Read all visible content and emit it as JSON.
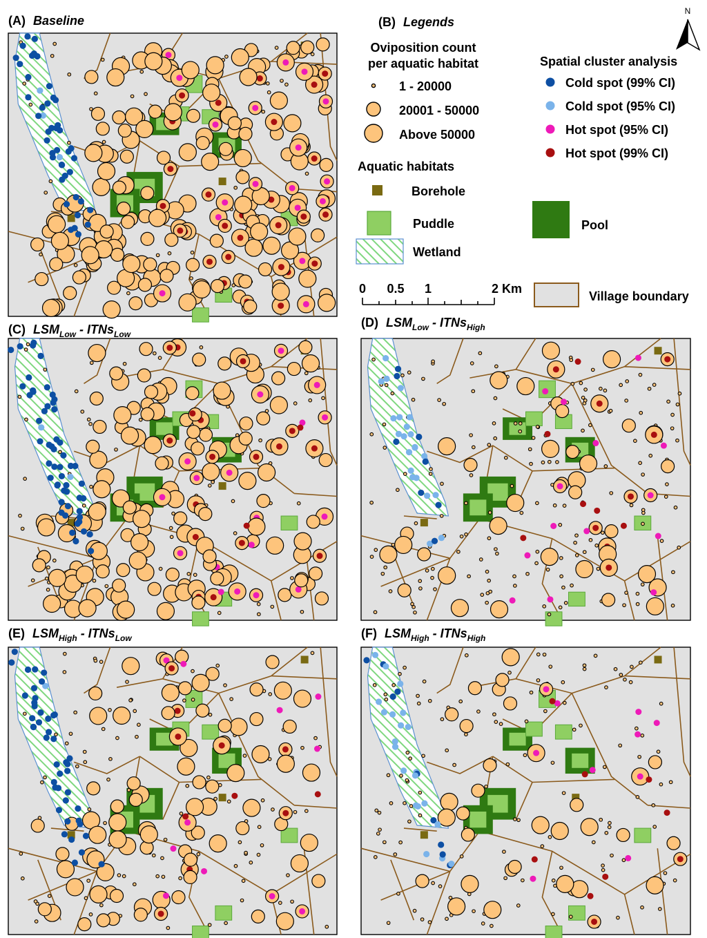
{
  "north_arrow": {
    "label": "N"
  },
  "scalebar": {
    "ticks": [
      "0",
      "0.5",
      "1",
      "2 Km"
    ]
  },
  "legend": {
    "panel_letter": "(B)",
    "title": "Legends",
    "oviposition_title_line1": "Oviposition count",
    "oviposition_title_line2": "per aquatic habitat",
    "size_classes": [
      "1 - 20000",
      "20001 - 50000",
      "Above 50000"
    ],
    "cluster_title": "Spatial cluster analysis",
    "clusters": [
      {
        "label": "Cold spot (99% CI)",
        "color": "#0d4fa3"
      },
      {
        "label": "Cold spot (95% CI)",
        "color": "#7ab3ea"
      },
      {
        "label": "Hot spot (95% CI)",
        "color": "#ee1ab8"
      },
      {
        "label": "Hot spot (99% CI)",
        "color": "#a80f10"
      }
    ],
    "habitats_title": "Aquatic habitats",
    "habitats": {
      "borehole": "Borehole",
      "puddle": "Puddle",
      "pool": "Pool",
      "wetland": "Wetland"
    },
    "village_boundary": "Village boundary"
  },
  "colors": {
    "map_background": "#e1e1e1",
    "habitat_circle": "#fdc47c",
    "village_boundary": "#8a5a1c",
    "wetland_hatch": "#7fd77f",
    "puddle": "#8fcf62",
    "pool": "#2f7a12",
    "borehole": "#7a6a12"
  },
  "panels": [
    {
      "letter": "(A)",
      "title_main": "Baseline",
      "title_a": "",
      "sub_a": "",
      "title_b": "",
      "sub_b": ""
    },
    {
      "letter": "(C)",
      "title_main": "",
      "title_a": "LSM",
      "sub_a": "Low",
      "title_b": " - ITNs",
      "sub_b": "Low"
    },
    {
      "letter": "(D)",
      "title_main": "",
      "title_a": "LSM",
      "sub_a": "Low",
      "title_b": " - ITNs",
      "sub_b": "High"
    },
    {
      "letter": "(E)",
      "title_main": "",
      "title_a": "LSM",
      "sub_a": "High",
      "title_b": " - ITNs",
      "sub_b": "Low"
    },
    {
      "letter": "(F)",
      "title_main": "",
      "title_a": "LSM",
      "sub_a": "High",
      "title_b": " - ITNs",
      "sub_b": "High"
    }
  ]
}
